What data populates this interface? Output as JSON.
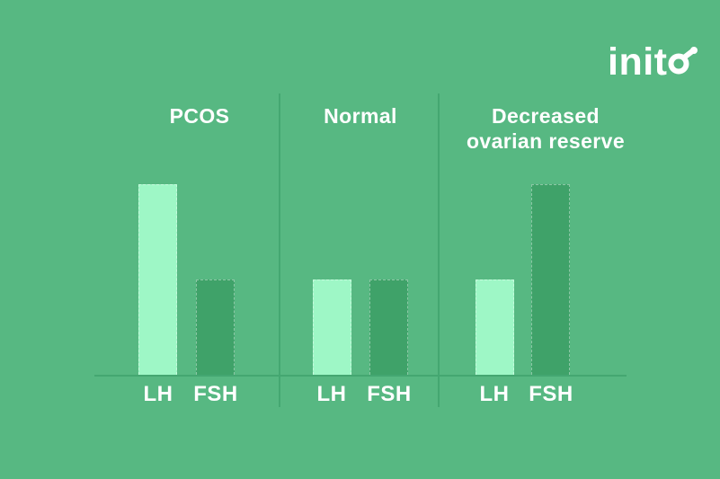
{
  "brand": {
    "name": "inito",
    "wordmark_text": "init"
  },
  "chart_data": {
    "type": "bar",
    "panels": [
      {
        "label": "PCOS",
        "categories": [
          "LH",
          "FSH"
        ],
        "values": [
          2.0,
          1.0
        ]
      },
      {
        "label": "Normal",
        "categories": [
          "LH",
          "FSH"
        ],
        "values": [
          1.0,
          1.0
        ]
      },
      {
        "label": "Decreased\novarian reserve",
        "categories": [
          "LH",
          "FSH"
        ],
        "values": [
          1.0,
          2.0
        ]
      }
    ],
    "series_colors": {
      "LH": "#9EF7C6",
      "FSH": "#3FA269"
    },
    "background_color": "#57B882",
    "axis_line_color": "#44A771",
    "text_color": "#FFFFFF",
    "ylim": [
      0,
      2.2
    ],
    "grid": false,
    "legend": "none",
    "value_axis_shown": false
  }
}
